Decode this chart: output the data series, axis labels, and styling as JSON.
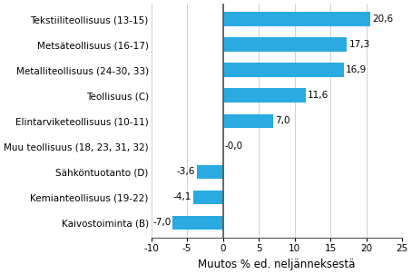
{
  "categories": [
    "Kaivostoiminta (B)",
    "Kemianteollisuus (19-22)",
    "Sähköntuotanto (D)",
    "Muu teollisuus (18, 23, 31, 32)",
    "Elintarviketeollisuus (10-11)",
    "Teollisuus (C)",
    "Metalliteollisuus (24-30, 33)",
    "Metsäteollisuus (16-17)",
    "Tekstiiliteollisuus (13-15)"
  ],
  "values": [
    -7.0,
    -4.1,
    -3.6,
    -0.0,
    7.0,
    11.6,
    16.9,
    17.3,
    20.6
  ],
  "bar_color": "#29abe2",
  "xlabel": "Muutos % ed. neljänneksestä",
  "xlim": [
    -10,
    25
  ],
  "xticks": [
    -10,
    -5,
    0,
    5,
    10,
    15,
    20,
    25
  ],
  "label_fontsize": 7.5,
  "xlabel_fontsize": 8.5,
  "value_labels": [
    "-7,0",
    "-4,1",
    "-3,6",
    "-0,0",
    "7,0",
    "11,6",
    "16,9",
    "17,3",
    "20,6"
  ],
  "background_color": "#ffffff",
  "grid_color": "#d0d0d0"
}
